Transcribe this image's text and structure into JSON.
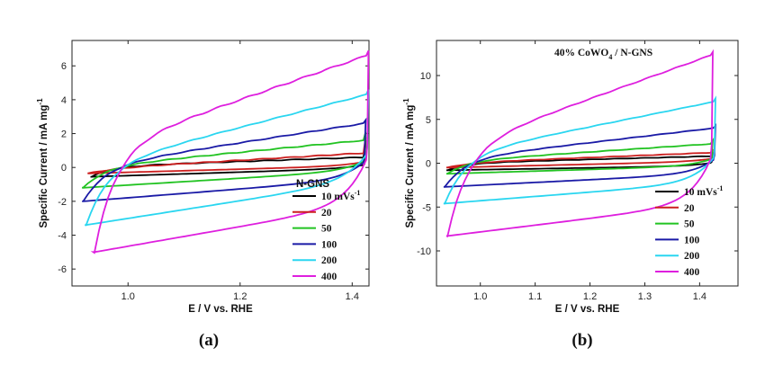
{
  "chart_data": [
    {
      "type": "line",
      "panel_label": "(a)",
      "xlabel": "E / V vs. RHE",
      "ylabel": "Specific Current / mA mg",
      "ylabel_sup": "-1",
      "xlim": [
        0.9,
        1.43
      ],
      "ylim": [
        -7.0,
        7.5
      ],
      "x_ticks": [
        1.0,
        1.2,
        1.4
      ],
      "x_tick_labels": [
        "1.0",
        "1.2",
        "1.4"
      ],
      "y_ticks": [
        -6,
        -4,
        -2,
        0,
        2,
        4,
        6
      ],
      "y_tick_labels": [
        "-6",
        "-4",
        "-2",
        "0",
        "2",
        "4",
        "6"
      ],
      "legend_title": "N-GNS",
      "legend_position": "lower-right",
      "series": [
        {
          "name": "10 mVs",
          "name_sup": "-1",
          "color": "#000000",
          "x0": 0.935,
          "x1": 1.42,
          "upper": [
            0.05,
            0.6
          ],
          "lower": [
            -0.55,
            -0.05
          ],
          "tipTop": 1.6,
          "tipBot": -0.55
        },
        {
          "name": "20",
          "color": "#cc1f1f",
          "x0": 0.93,
          "x1": 1.42,
          "upper": [
            -0.1,
            0.85
          ],
          "lower": [
            -0.35,
            0.1
          ],
          "tipTop": 1.8,
          "tipBot": -0.35
        },
        {
          "name": "50",
          "color": "#22c322",
          "x0": 0.92,
          "x1": 1.42,
          "upper": [
            0.0,
            1.6
          ],
          "lower": [
            -1.2,
            -0.2
          ],
          "tipTop": 2.1,
          "tipBot": -1.2
        },
        {
          "name": "100",
          "color": "#1a1aa6",
          "x0": 0.92,
          "x1": 1.42,
          "upper": [
            0.0,
            2.6
          ],
          "lower": [
            -2.0,
            -0.7
          ],
          "tipTop": 2.8,
          "tipBot": -2.0
        },
        {
          "name": "200",
          "color": "#2ad6f0",
          "x0": 0.925,
          "x1": 1.425,
          "upper": [
            0.0,
            4.3
          ],
          "lower": [
            -3.4,
            -0.8
          ],
          "tipTop": 4.6,
          "tipBot": -3.4
        },
        {
          "name": "400",
          "color": "#de1fde",
          "x0": 0.94,
          "x1": 1.425,
          "upper": [
            1.0,
            6.6
          ],
          "lower": [
            -5.0,
            -2.2
          ],
          "tipTop": 6.9,
          "tipBot": -5.0
        }
      ]
    },
    {
      "type": "line",
      "panel_label": "(b)",
      "xlabel": "E / V vs. RHE",
      "ylabel": "Specific Current / mA mg",
      "ylabel_sup": "-1",
      "xlim": [
        0.92,
        1.47
      ],
      "ylim": [
        -14.0,
        14.0
      ],
      "x_ticks": [
        1.0,
        1.1,
        1.2,
        1.3,
        1.4
      ],
      "x_tick_labels": [
        "1.0",
        "1.1",
        "1.2",
        "1.3",
        "1.4"
      ],
      "y_ticks": [
        -10,
        -5,
        0,
        5,
        10
      ],
      "y_tick_labels": [
        "-10",
        "-5",
        "0",
        "5",
        "10"
      ],
      "annotation": "40% CoWO",
      "annotation_sub": "4",
      "annotation_tail": " / N-GNS",
      "legend_position": "lower-right",
      "series": [
        {
          "name": "10 mVs",
          "name_sup": "-1",
          "color": "#000000",
          "x0": 0.94,
          "x1": 1.42,
          "upper": [
            0.0,
            0.8
          ],
          "lower": [
            -0.8,
            -0.3
          ],
          "tipTop": 1.3,
          "tipBot": -0.8
        },
        {
          "name": "20",
          "color": "#cc1f1f",
          "x0": 0.94,
          "x1": 1.42,
          "upper": [
            0.0,
            1.2
          ],
          "lower": [
            -0.5,
            0.2
          ],
          "tipTop": 1.6,
          "tipBot": -0.5
        },
        {
          "name": "50",
          "color": "#22c322",
          "x0": 0.94,
          "x1": 1.42,
          "upper": [
            0.2,
            2.2
          ],
          "lower": [
            -1.2,
            -0.3
          ],
          "tipTop": 2.6,
          "tipBot": -1.2
        },
        {
          "name": "100",
          "color": "#1a1aa6",
          "x0": 0.935,
          "x1": 1.425,
          "upper": [
            0.4,
            4.0
          ],
          "lower": [
            -2.7,
            -1.2
          ],
          "tipTop": 4.3,
          "tipBot": -2.7
        },
        {
          "name": "200",
          "color": "#2ad6f0",
          "x0": 0.935,
          "x1": 1.425,
          "upper": [
            0.8,
            7.0
          ],
          "lower": [
            -4.6,
            -2.2
          ],
          "tipTop": 7.4,
          "tipBot": -4.6
        },
        {
          "name": "400",
          "color": "#de1fde",
          "x0": 0.94,
          "x1": 1.42,
          "upper": [
            1.5,
            12.3
          ],
          "lower": [
            -8.3,
            -4.6
          ],
          "tipTop": 12.7,
          "tipBot": -8.3
        }
      ]
    }
  ]
}
